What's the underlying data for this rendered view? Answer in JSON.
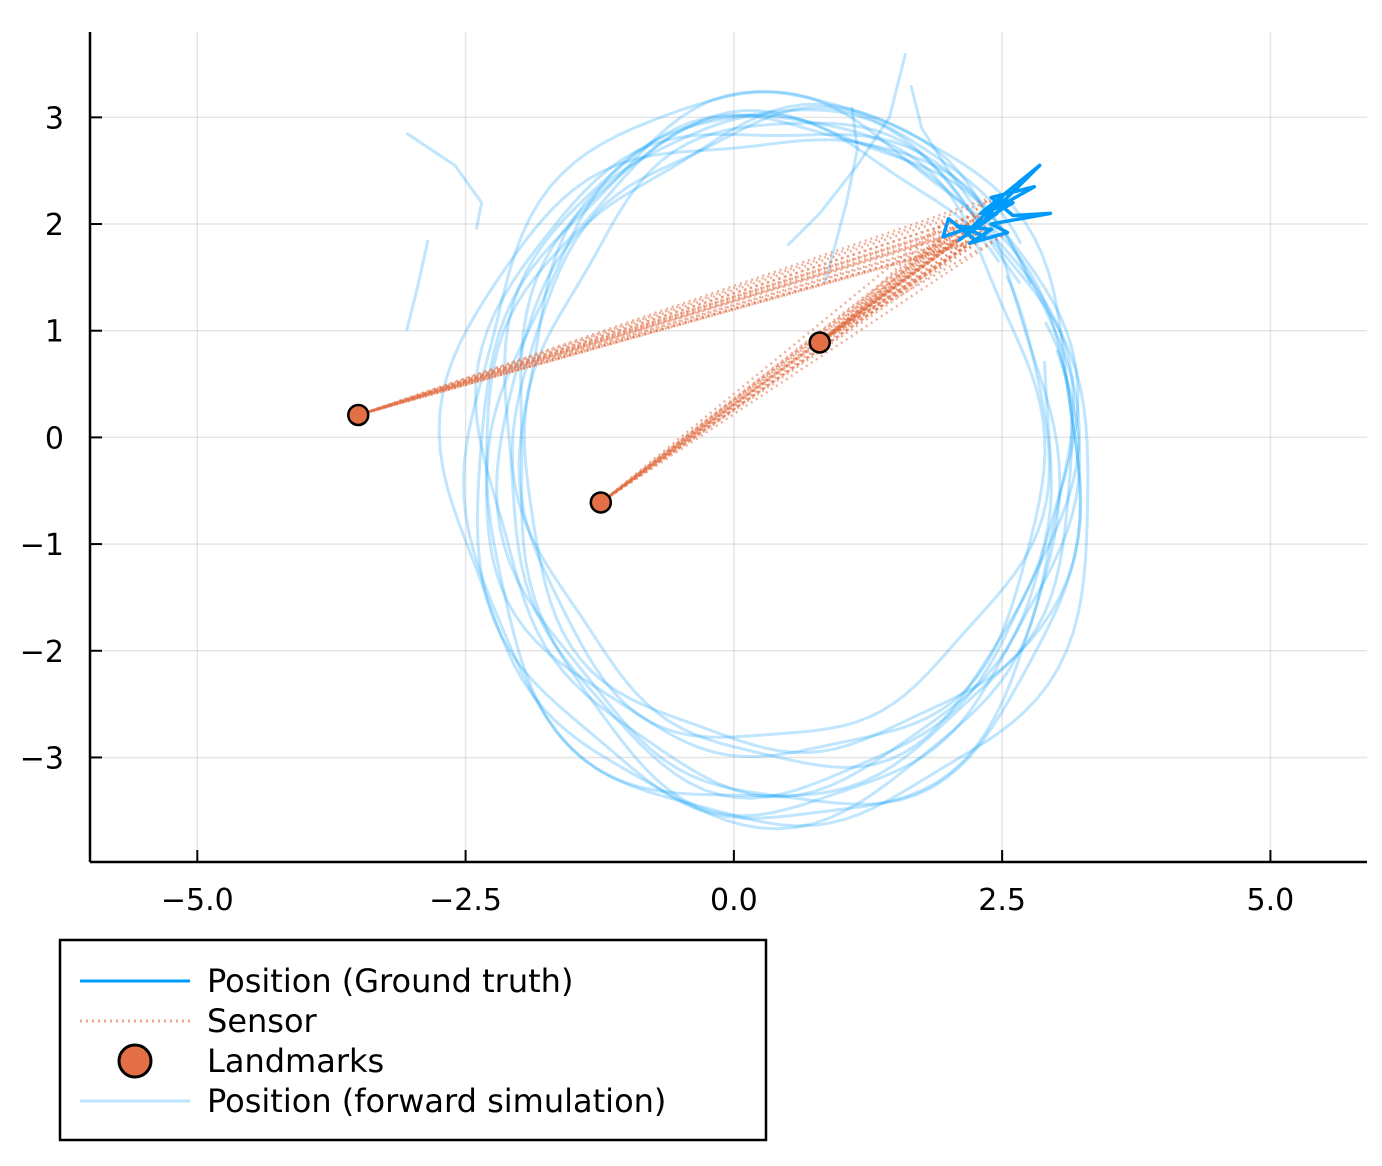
{
  "chart_data": {
    "type": "line",
    "title": "",
    "xlabel": "",
    "ylabel": "",
    "xlim": [
      -6.0,
      5.9
    ],
    "ylim": [
      -3.98,
      3.8
    ],
    "grid": true,
    "legend_placement": "bottom-left, outside plot area",
    "x_ticks": [
      {
        "value": -5.0,
        "label": "−5.0"
      },
      {
        "value": -2.5,
        "label": "−2.5"
      },
      {
        "value": 0.0,
        "label": "0.0"
      },
      {
        "value": 2.5,
        "label": "2.5"
      },
      {
        "value": 5.0,
        "label": "5.0"
      }
    ],
    "y_ticks": [
      {
        "value": 3,
        "label": "3"
      },
      {
        "value": 2,
        "label": "2"
      },
      {
        "value": 1,
        "label": "1"
      },
      {
        "value": 0,
        "label": "0"
      },
      {
        "value": -1,
        "label": "−1"
      },
      {
        "value": -2,
        "label": "−2"
      },
      {
        "value": -3,
        "label": "−3"
      }
    ],
    "series": [
      {
        "name": "Position (Ground truth)",
        "style": "line",
        "color": "#009AFA",
        "points": [
          [
            2.25,
            1.85
          ],
          [
            2.0,
            2.05
          ],
          [
            1.95,
            1.88
          ],
          [
            2.3,
            2.0
          ],
          [
            2.1,
            1.85
          ],
          [
            2.45,
            2.1
          ],
          [
            2.2,
            1.95
          ],
          [
            2.5,
            2.25
          ],
          [
            2.35,
            2.05
          ],
          [
            2.6,
            2.2
          ],
          [
            2.3,
            2.1
          ],
          [
            2.85,
            2.55
          ],
          [
            2.45,
            2.15
          ],
          [
            2.8,
            2.35
          ],
          [
            2.4,
            2.25
          ],
          [
            2.6,
            2.08
          ],
          [
            2.95,
            2.1
          ],
          [
            2.4,
            2.0
          ],
          [
            2.55,
            1.92
          ],
          [
            2.2,
            1.82
          ],
          [
            2.4,
            1.95
          ],
          [
            2.1,
            1.98
          ],
          [
            2.35,
            1.88
          ]
        ]
      },
      {
        "name": "Sensor",
        "style": "dotted",
        "color": "#E26F46",
        "segments_from": [
          [
            2.25,
            1.85
          ],
          [
            2.0,
            2.05
          ],
          [
            1.95,
            1.88
          ],
          [
            2.3,
            2.0
          ],
          [
            2.1,
            1.85
          ],
          [
            2.45,
            2.1
          ],
          [
            2.2,
            1.95
          ],
          [
            2.35,
            2.05
          ],
          [
            2.3,
            2.1
          ],
          [
            2.45,
            2.15
          ],
          [
            2.4,
            2.25
          ],
          [
            2.4,
            2.0
          ],
          [
            2.55,
            1.92
          ],
          [
            2.2,
            1.82
          ],
          [
            2.4,
            1.95
          ],
          [
            2.1,
            1.98
          ],
          [
            2.35,
            1.88
          ],
          [
            2.5,
            2.25
          ]
        ],
        "landmarks_targeted": [
          0,
          1,
          2
        ]
      },
      {
        "name": "Landmarks",
        "style": "scatter",
        "color": "#E26F46",
        "points": [
          [
            -3.5,
            0.21
          ],
          [
            -1.24,
            -0.61
          ],
          [
            0.8,
            0.89
          ]
        ]
      },
      {
        "name": "Position (forward simulation)",
        "style": "line",
        "color": "#009AFA",
        "opacity": 0.25,
        "curves": [
          {
            "cx": 0.4,
            "cy": -0.1,
            "rx": 2.75,
            "ry": 3.1,
            "start_deg": 25,
            "end_deg": 395
          },
          {
            "cx": 0.5,
            "cy": -0.2,
            "rx": 2.6,
            "ry": 3.25,
            "start_deg": 30,
            "end_deg": 380
          },
          {
            "cx": 0.3,
            "cy": -0.15,
            "rx": 2.85,
            "ry": 3.3,
            "start_deg": 28,
            "end_deg": 410
          },
          {
            "cx": 0.6,
            "cy": -0.05,
            "rx": 2.55,
            "ry": 2.95,
            "start_deg": 32,
            "end_deg": 385
          },
          {
            "cx": 0.35,
            "cy": -0.25,
            "rx": 2.7,
            "ry": 3.4,
            "start_deg": 27,
            "end_deg": 400
          },
          {
            "cx": 0.55,
            "cy": 0.0,
            "rx": 2.5,
            "ry": 3.05,
            "start_deg": 35,
            "end_deg": 375
          },
          {
            "cx": 0.25,
            "cy": -0.3,
            "rx": 2.9,
            "ry": 3.2,
            "start_deg": 24,
            "end_deg": 430
          },
          {
            "cx": 0.45,
            "cy": -0.1,
            "rx": 2.65,
            "ry": 3.15,
            "start_deg": 30,
            "end_deg": 415
          },
          {
            "cx": 0.4,
            "cy": 0.05,
            "rx": 2.45,
            "ry": 2.9,
            "start_deg": 33,
            "end_deg": 390
          },
          {
            "cx": 0.5,
            "cy": -0.35,
            "rx": 2.8,
            "ry": 3.35,
            "start_deg": 26,
            "end_deg": 420
          },
          {
            "cx": 0.3,
            "cy": -0.05,
            "rx": 2.6,
            "ry": 3.0,
            "start_deg": 31,
            "end_deg": 440
          },
          {
            "cx": 0.6,
            "cy": -0.2,
            "rx": 2.7,
            "ry": 3.25,
            "start_deg": 29,
            "end_deg": 405
          }
        ],
        "strays": [
          [
            [
              -3.05,
              2.85
            ],
            [
              -2.6,
              2.55
            ],
            [
              -2.35,
              2.2
            ],
            [
              -2.4,
              1.95
            ]
          ],
          [
            [
              -2.85,
              1.85
            ],
            [
              -2.95,
              1.4
            ],
            [
              -3.05,
              1.0
            ]
          ],
          [
            [
              1.6,
              3.6
            ],
            [
              1.45,
              3.0
            ],
            [
              1.15,
              2.55
            ],
            [
              0.8,
              2.1
            ],
            [
              0.5,
              1.8
            ]
          ],
          [
            [
              0.85,
              1.45
            ],
            [
              1.05,
              2.2
            ],
            [
              1.15,
              2.7
            ],
            [
              1.1,
              3.1
            ]
          ],
          [
            [
              1.65,
              3.3
            ],
            [
              1.75,
              2.9
            ],
            [
              2.0,
              2.5
            ],
            [
              2.25,
              2.15
            ]
          ]
        ]
      }
    ]
  },
  "legend": {
    "items": [
      {
        "label": "Position (Ground truth)",
        "kind": "line",
        "color": "#009AFA"
      },
      {
        "label": "Sensor",
        "kind": "dotted",
        "color": "#E26F46"
      },
      {
        "label": "Landmarks",
        "kind": "marker",
        "color": "#E26F46"
      },
      {
        "label": "Position (forward simulation)",
        "kind": "faint-line",
        "color": "#009AFA"
      }
    ]
  }
}
